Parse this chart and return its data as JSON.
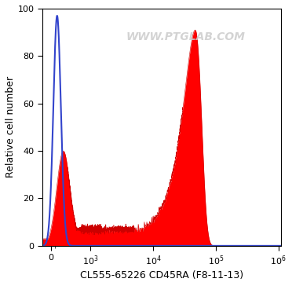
{
  "title": "",
  "xlabel": "CL555-65226 CD45RA (F8-11-13)",
  "ylabel": "Relative cell number",
  "ylim": [
    0,
    100
  ],
  "yticks": [
    0,
    20,
    40,
    60,
    80,
    100
  ],
  "xticks": [
    0,
    1000,
    10000,
    100000,
    1000000
  ],
  "xtick_labels": [
    "0",
    "10$^3$",
    "10$^4$",
    "10$^5$",
    "10$^6$"
  ],
  "xlim": [
    -200,
    1100000
  ],
  "linthresh": 500,
  "watermark": "WWW.PTGLAB.COM",
  "blue_color": "#3344cc",
  "red_fill_color": "#ff0000",
  "red_line_color": "#cc0000",
  "background_color": "#ffffff"
}
